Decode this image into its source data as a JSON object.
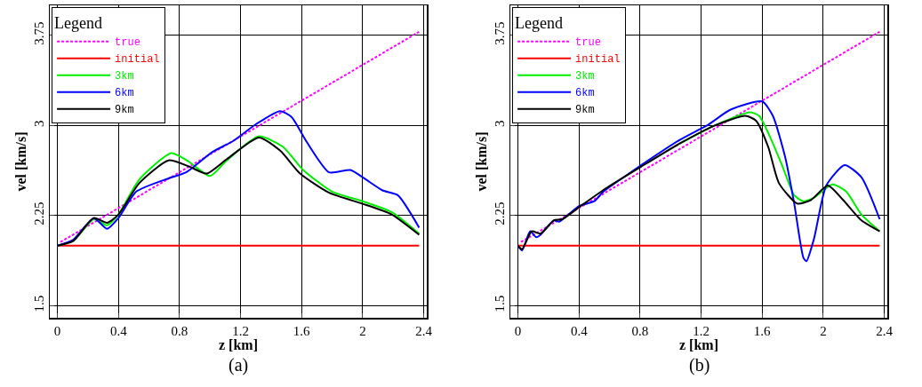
{
  "chart_data": [
    {
      "type": "line",
      "xlabel": "z [km]",
      "ylabel": "vel [km/s]",
      "legend_title": "Legend",
      "legend": "top left",
      "grid": true,
      "xlim": [
        -0.05,
        2.42
      ],
      "ylim": [
        1.4,
        4.0
      ],
      "xticks": [
        0,
        0.4,
        0.8,
        1.2,
        1.6,
        2,
        2.4
      ],
      "yticks": [
        1.5,
        2.25,
        3,
        3.75
      ],
      "annotations": [
        "(a)"
      ],
      "series": [
        {
          "name": "true",
          "color": "#ff00ff",
          "line_style": "dotted",
          "x": [
            0.02,
            2.37
          ],
          "values": [
            2.03,
            3.78
          ]
        },
        {
          "name": "initial",
          "color": "#ff0000",
          "x": [
            0,
            2.37
          ],
          "values": [
            2.0,
            2.0
          ]
        },
        {
          "name": "3km",
          "color": "#00ee00",
          "x": [
            0,
            0.104,
            0.238,
            0.325,
            0.4,
            0.536,
            0.747,
            0.86,
            1.0,
            1.11,
            1.32,
            1.48,
            1.61,
            1.8,
            2.0,
            2.19,
            2.37
          ],
          "values": [
            2.0,
            2.04,
            2.22,
            2.17,
            2.26,
            2.55,
            2.77,
            2.7,
            2.58,
            2.71,
            2.91,
            2.82,
            2.63,
            2.45,
            2.37,
            2.28,
            2.1
          ]
        },
        {
          "name": "6km",
          "color": "#0000ff",
          "x": [
            0,
            0.104,
            0.238,
            0.325,
            0.4,
            0.517,
            0.728,
            0.843,
            1.016,
            1.15,
            1.3,
            1.458,
            1.535,
            1.63,
            1.78,
            1.92,
            2.01,
            2.13,
            2.23,
            2.37
          ],
          "values": [
            2.0,
            2.05,
            2.23,
            2.14,
            2.23,
            2.45,
            2.56,
            2.61,
            2.78,
            2.87,
            3.01,
            3.12,
            3.07,
            2.87,
            2.61,
            2.63,
            2.56,
            2.46,
            2.42,
            2.15
          ]
        },
        {
          "name": "9km",
          "color": "#000000",
          "x": [
            0,
            0.104,
            0.238,
            0.325,
            0.4,
            0.536,
            0.728,
            0.86,
            0.978,
            1.11,
            1.32,
            1.46,
            1.59,
            1.78,
            1.996,
            2.19,
            2.37
          ],
          "values": [
            2.0,
            2.04,
            2.23,
            2.19,
            2.26,
            2.52,
            2.71,
            2.66,
            2.6,
            2.72,
            2.9,
            2.79,
            2.6,
            2.44,
            2.35,
            2.26,
            2.09
          ]
        }
      ]
    },
    {
      "type": "line",
      "xlabel": "z [km]",
      "ylabel": "vel [km/s]",
      "legend_title": "Legend",
      "legend": "top left",
      "grid": true,
      "xlim": [
        -0.05,
        2.42
      ],
      "ylim": [
        1.4,
        4.0
      ],
      "xticks": [
        0,
        0.4,
        0.8,
        1.2,
        1.6,
        2,
        2.4
      ],
      "yticks": [
        1.5,
        2.25,
        3,
        3.75
      ],
      "annotations": [
        "(b)"
      ],
      "series": [
        {
          "name": "true",
          "color": "#ff00ff",
          "line_style": "dotted",
          "x": [
            0.02,
            2.37
          ],
          "values": [
            2.03,
            3.78
          ]
        },
        {
          "name": "initial",
          "color": "#ff0000",
          "x": [
            0,
            2.37
          ],
          "values": [
            2.0,
            2.0
          ]
        },
        {
          "name": "3km",
          "color": "#00ee00",
          "x": [
            1.06,
            1.29,
            1.52,
            1.58,
            1.65,
            1.73,
            1.81,
            1.87,
            1.94,
            2.06,
            2.15,
            2.25,
            2.37
          ],
          "values": [
            2.85,
            3.0,
            3.11,
            3.08,
            2.91,
            2.67,
            2.42,
            2.37,
            2.4,
            2.51,
            2.45,
            2.26,
            2.12
          ]
        },
        {
          "name": "6km",
          "color": "#0000ff",
          "x": [
            0,
            0.027,
            0.08,
            0.12,
            0.148,
            0.234,
            0.27,
            0.4,
            0.5,
            0.56,
            0.75,
            1.06,
            1.25,
            1.39,
            1.6,
            1.67,
            1.75,
            1.81,
            1.87,
            1.89,
            1.94,
            2.02,
            2.14,
            2.25,
            2.37
          ],
          "values": [
            2.0,
            1.96,
            2.12,
            2.07,
            2.09,
            2.21,
            2.2,
            2.33,
            2.37,
            2.45,
            2.62,
            2.88,
            3.01,
            3.13,
            3.2,
            3.08,
            2.74,
            2.35,
            1.9,
            1.87,
            2.06,
            2.5,
            2.67,
            2.57,
            2.22
          ]
        },
        {
          "name": "9km",
          "color": "#000000",
          "x": [
            0,
            0.027,
            0.09,
            0.148,
            0.234,
            0.29,
            0.4,
            0.58,
            0.81,
            1.06,
            1.29,
            1.49,
            1.56,
            1.64,
            1.71,
            1.83,
            1.92,
            2.03,
            2.13,
            2.25,
            2.37
          ],
          "values": [
            2.0,
            1.97,
            2.12,
            2.1,
            2.21,
            2.22,
            2.32,
            2.48,
            2.66,
            2.85,
            3.0,
            3.08,
            3.04,
            2.82,
            2.52,
            2.35,
            2.38,
            2.5,
            2.38,
            2.21,
            2.12
          ]
        }
      ]
    }
  ]
}
